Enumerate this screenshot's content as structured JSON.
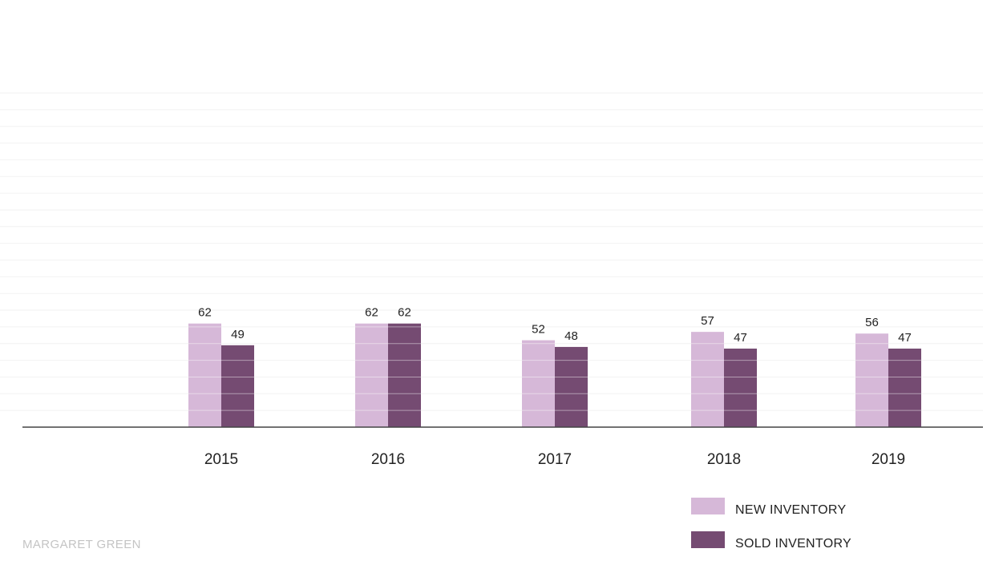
{
  "chart_data": {
    "type": "bar",
    "categories": [
      "2015",
      "2016",
      "2017",
      "2018",
      "2019"
    ],
    "series": [
      {
        "name": "NEW INVENTORY",
        "values": [
          62,
          62,
          52,
          57,
          56
        ],
        "color": "#d6b8d8"
      },
      {
        "name": "SOLD INVENTORY",
        "values": [
          49,
          62,
          48,
          47,
          47
        ],
        "color": "#754b72"
      }
    ],
    "ylim": [
      0,
      200
    ],
    "grid": true,
    "legend": "bottom-right",
    "data_labels": true
  },
  "watermark": "MARGARET GREEN",
  "colors": {
    "grid": "#f2f2f2",
    "axis": "#444444",
    "bar_stripe": "#ffffff"
  }
}
